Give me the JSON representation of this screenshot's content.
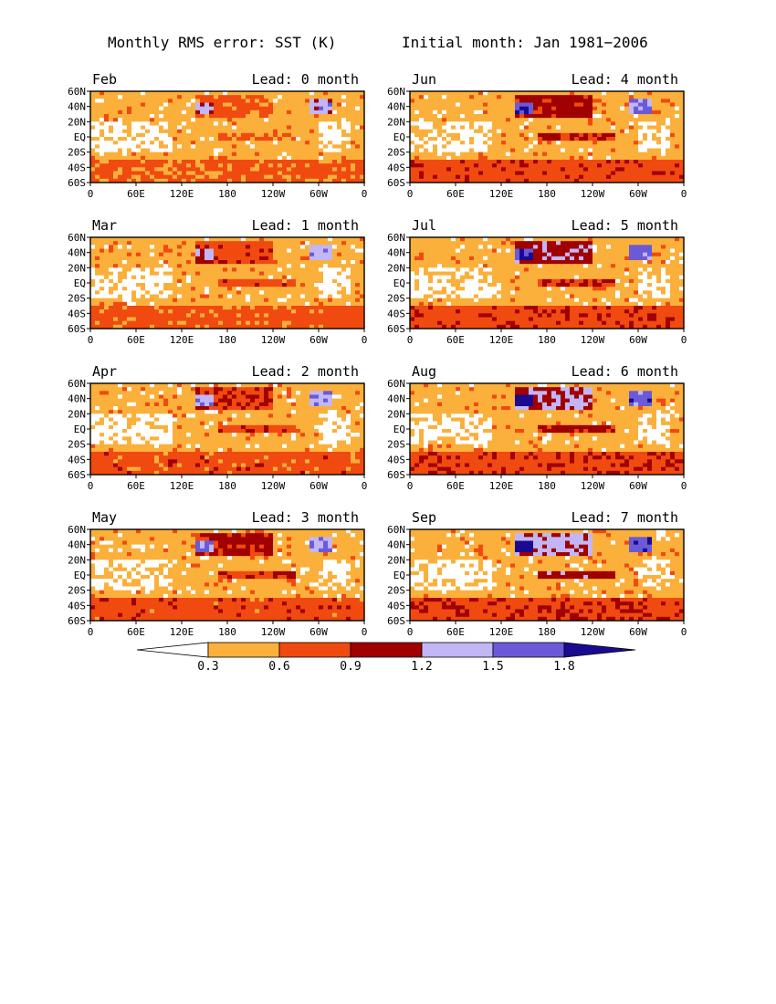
{
  "figure": {
    "title_left": "Monthly RMS error: SST (K)",
    "title_right": "Initial month: Jan 1981−2006"
  },
  "panels": [
    {
      "month": "Feb",
      "lead": "Lead: 0 month"
    },
    {
      "month": "Jun",
      "lead": "Lead: 4 month"
    },
    {
      "month": "Mar",
      "lead": "Lead: 1 month"
    },
    {
      "month": "Jul",
      "lead": "Lead: 5 month"
    },
    {
      "month": "Apr",
      "lead": "Lead: 2 month"
    },
    {
      "month": "Aug",
      "lead": "Lead: 6 month"
    },
    {
      "month": "May",
      "lead": "Lead: 3 month"
    },
    {
      "month": "Sep",
      "lead": "Lead: 7 month"
    }
  ],
  "axes": {
    "lat_labels": [
      "60N",
      "40N",
      "20N",
      "EQ",
      "20S",
      "40S",
      "60S"
    ],
    "lon_labels": [
      "0",
      "60E",
      "120E",
      "180",
      "120W",
      "60W",
      "0"
    ]
  },
  "colorbar": {
    "ticks": [
      "0.3",
      "0.6",
      "0.9",
      "1.2",
      "1.5",
      "1.8"
    ],
    "colors": [
      "#ffffff",
      "#fbb03b",
      "#f04a10",
      "#a00000",
      "#c2b6f6",
      "#6a5ad8",
      "#1a0a90"
    ]
  },
  "chart_data": {
    "type": "heatmap",
    "field": "SST RMS error",
    "unit": "K",
    "lat_range": [
      -60,
      60
    ],
    "lon_range": [
      0,
      360
    ],
    "levels": [
      0.3,
      0.6,
      0.9,
      1.2,
      1.5,
      1.8
    ]
  }
}
